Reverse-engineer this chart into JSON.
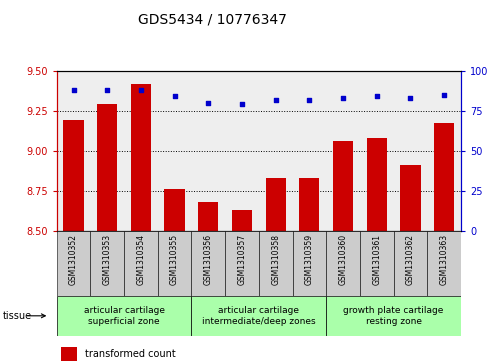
{
  "title": "GDS5434 / 10776347",
  "samples": [
    "GSM1310352",
    "GSM1310353",
    "GSM1310354",
    "GSM1310355",
    "GSM1310356",
    "GSM1310357",
    "GSM1310358",
    "GSM1310359",
    "GSM1310360",
    "GSM1310361",
    "GSM1310362",
    "GSM1310363"
  ],
  "bar_values": [
    9.19,
    9.29,
    9.42,
    8.76,
    8.68,
    8.63,
    8.83,
    8.83,
    9.06,
    9.08,
    8.91,
    9.17
  ],
  "percentile_values": [
    88,
    88,
    88,
    84,
    80,
    79,
    82,
    82,
    83,
    84,
    83,
    85
  ],
  "bar_color": "#cc0000",
  "percentile_color": "#0000cc",
  "ylim_left": [
    8.5,
    9.5
  ],
  "ylim_right": [
    0,
    100
  ],
  "yticks_left": [
    8.5,
    8.75,
    9.0,
    9.25,
    9.5
  ],
  "yticks_right": [
    0,
    25,
    50,
    75,
    100
  ],
  "tissue_groups": [
    {
      "label": "articular cartilage\nsuperficial zone",
      "start": 0,
      "end": 3
    },
    {
      "label": "articular cartilage\nintermediate/deep zones",
      "start": 4,
      "end": 7
    },
    {
      "label": "growth plate cartilage\nresting zone",
      "start": 8,
      "end": 11
    }
  ],
  "bar_width": 0.6,
  "bar_color_main": "#cc0000",
  "percentile_color_main": "#0000cc",
  "ylabel_left_color": "#cc0000",
  "ylabel_right_color": "#0000cc",
  "title_fontsize": 10,
  "tick_fontsize": 7,
  "sample_fontsize": 5.5,
  "tissue_fontsize": 6.5,
  "legend_fontsize": 7,
  "tissue_bg_color": "#aaffaa",
  "sample_bg_color": "#cccccc",
  "plot_bg_color": "#eeeeee"
}
